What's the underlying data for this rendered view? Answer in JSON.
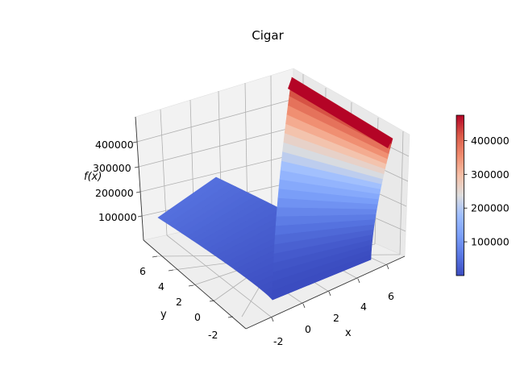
{
  "chart_data": {
    "type": "surface3d",
    "title": "Cigar",
    "xlabel": "x",
    "ylabel": "y",
    "zlabel": "f(x)",
    "function": "x^2 + 10000*y^2",
    "x_range": [
      -3,
      7
    ],
    "y_range": [
      -3,
      7
    ],
    "z_range": [
      0,
      490000
    ],
    "x_ticks": [
      -2,
      0,
      2,
      4,
      6
    ],
    "y_ticks": [
      -2,
      0,
      2,
      4,
      6
    ],
    "z_ticks": [
      100000,
      200000,
      300000,
      400000
    ],
    "colormap": "coolwarm",
    "colorbar": {
      "min": 0,
      "max": 475000,
      "ticks": [
        100000,
        200000,
        300000,
        400000
      ]
    },
    "colors": {
      "cold": "#3b4cc0",
      "neutral": "#dddddd",
      "warm": "#b40426",
      "pane": "#f2f2f2",
      "grid": "#b0b0b0"
    }
  }
}
